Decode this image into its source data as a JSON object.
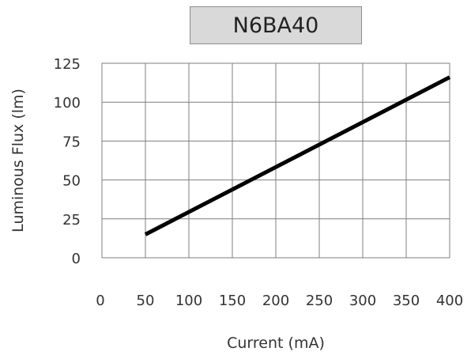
{
  "chart_data": {
    "type": "line",
    "title": "N6BA40",
    "xlabel": "Current (mA)",
    "ylabel": "Luminous Flux (lm)",
    "x_ticks": [
      "0",
      "50",
      "100",
      "150",
      "200",
      "250",
      "300",
      "350",
      "400"
    ],
    "y_ticks": [
      "0",
      "25",
      "50",
      "75",
      "100",
      "125"
    ],
    "xlim": [
      0,
      400
    ],
    "ylim": [
      0,
      125
    ],
    "grid": true,
    "series": [
      {
        "x": [
          50,
          400
        ],
        "y": [
          15,
          116
        ],
        "color": "#000000"
      }
    ]
  }
}
